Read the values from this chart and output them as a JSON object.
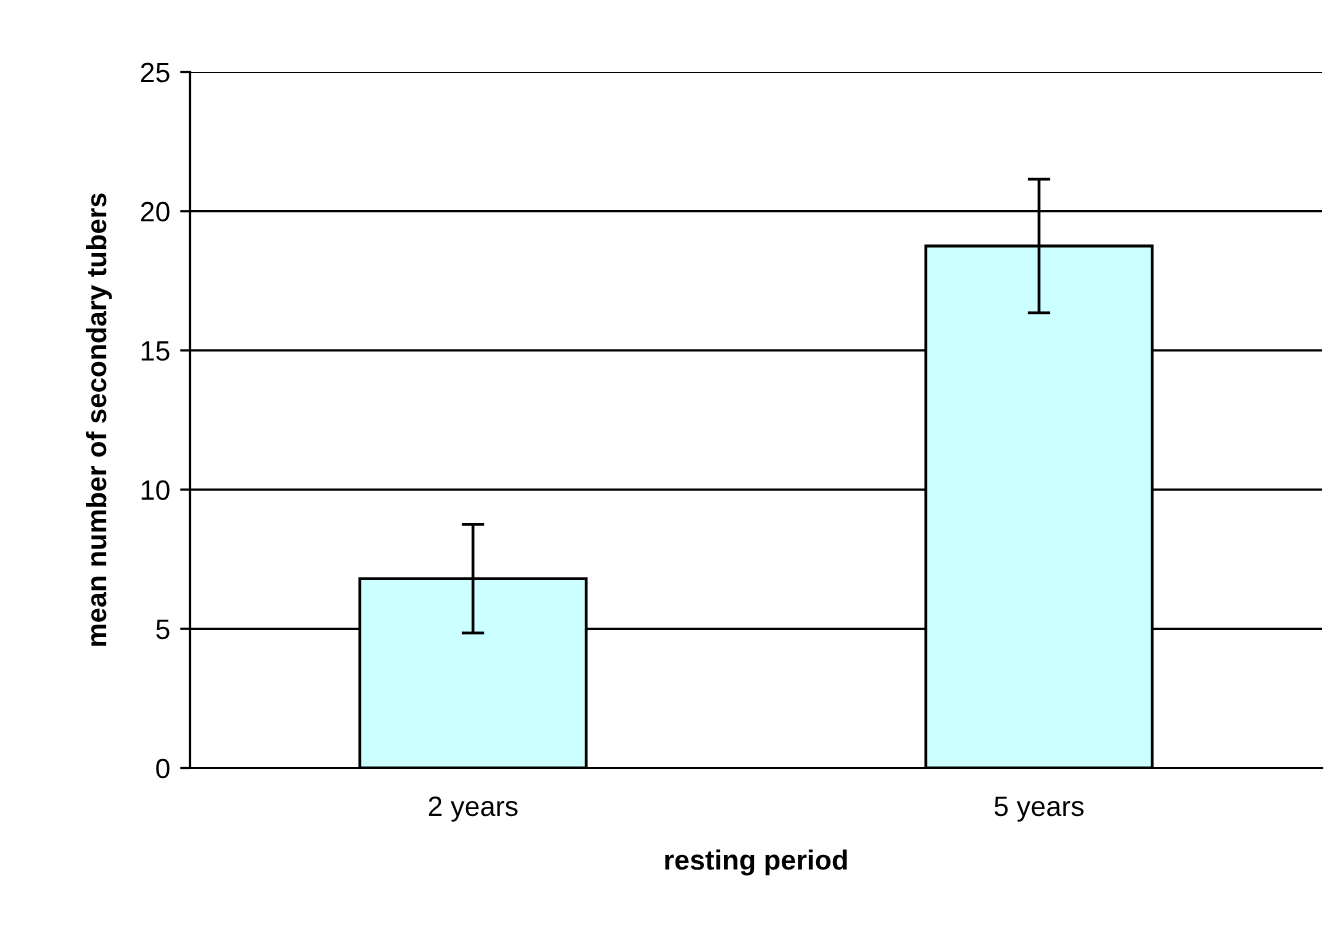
{
  "chart_data": {
    "type": "bar",
    "xlabel": "resting period",
    "ylabel": "mean number of secondary tubers",
    "categories": [
      "2 years",
      "5 years"
    ],
    "values": [
      6.8,
      18.75
    ],
    "errors": [
      1.95,
      2.4
    ],
    "color": "#ccffff",
    "ylim": [
      0,
      25
    ],
    "yticks": [
      0,
      5,
      10,
      15,
      20,
      25
    ],
    "grid": "y"
  }
}
